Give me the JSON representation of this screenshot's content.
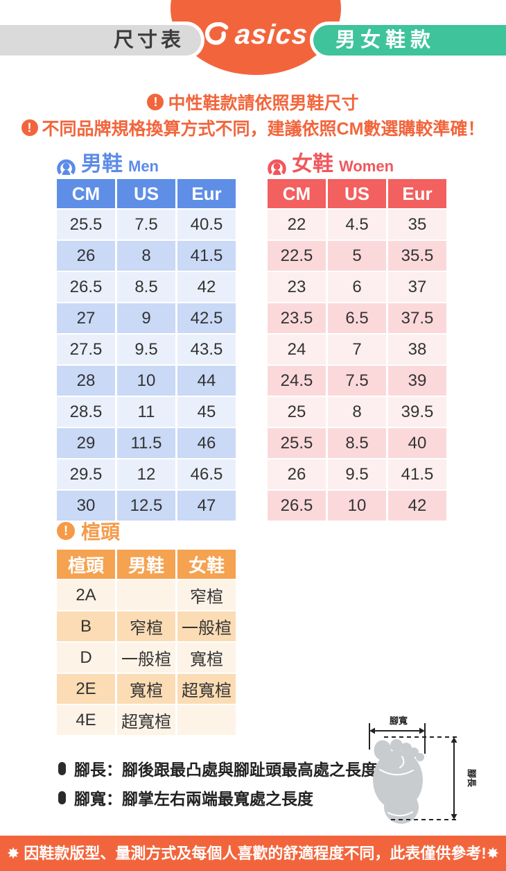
{
  "header": {
    "left_pill": "尺寸表",
    "brand": "asics",
    "right_pill": "男女鞋款"
  },
  "notices": [
    "中性鞋款請依照男鞋尺寸",
    "不同品牌規格換算方式不同，建議依照CM數選購較準確！"
  ],
  "men_table": {
    "title_zh": "男鞋",
    "title_en": "Men",
    "columns": [
      "CM",
      "US",
      "Eur"
    ],
    "rows": [
      [
        "25.5",
        "7.5",
        "40.5"
      ],
      [
        "26",
        "8",
        "41.5"
      ],
      [
        "26.5",
        "8.5",
        "42"
      ],
      [
        "27",
        "9",
        "42.5"
      ],
      [
        "27.5",
        "9.5",
        "43.5"
      ],
      [
        "28",
        "10",
        "44"
      ],
      [
        "28.5",
        "11",
        "45"
      ],
      [
        "29",
        "11.5",
        "46"
      ],
      [
        "29.5",
        "12",
        "46.5"
      ],
      [
        "30",
        "12.5",
        "47"
      ]
    ]
  },
  "women_table": {
    "title_zh": "女鞋",
    "title_en": "Women",
    "columns": [
      "CM",
      "US",
      "Eur"
    ],
    "rows": [
      [
        "22",
        "4.5",
        "35"
      ],
      [
        "22.5",
        "5",
        "35.5"
      ],
      [
        "23",
        "6",
        "37"
      ],
      [
        "23.5",
        "6.5",
        "37.5"
      ],
      [
        "24",
        "7",
        "38"
      ],
      [
        "24.5",
        "7.5",
        "39"
      ],
      [
        "25",
        "8",
        "39.5"
      ],
      [
        "25.5",
        "8.5",
        "40"
      ],
      [
        "26",
        "9.5",
        "41.5"
      ],
      [
        "26.5",
        "10",
        "42"
      ]
    ]
  },
  "width_section": {
    "title": "楦頭",
    "columns": [
      "楦頭",
      "男鞋",
      "女鞋"
    ],
    "rows": [
      [
        "2A",
        "",
        "窄楦"
      ],
      [
        "B",
        "窄楦",
        "一般楦"
      ],
      [
        "D",
        "一般楦",
        "寬楦"
      ],
      [
        "2E",
        "寬楦",
        "超寬楦"
      ],
      [
        "4E",
        "超寬楦",
        ""
      ]
    ]
  },
  "measure_notes": [
    "腳長：腳後跟最凸處與腳趾頭最高處之長度",
    "腳寬：腳掌左右兩端最寬處之長度"
  ],
  "diagram": {
    "width_label": "腳寬",
    "length_label": "腳長"
  },
  "footer": {
    "text": "✸ 因鞋款版型、量測方式及每個人喜歡的舒適程度不同，此表僅供參考!✸"
  },
  "colors": {
    "accent_orange": "#F2653C",
    "light_orange": "#F5A251",
    "teal": "#3EC39A",
    "men_blue": "#5E8EE6",
    "women_red": "#F2605F",
    "pill_gray": "#DADADA",
    "foot_gray": "#C9CCCF"
  }
}
